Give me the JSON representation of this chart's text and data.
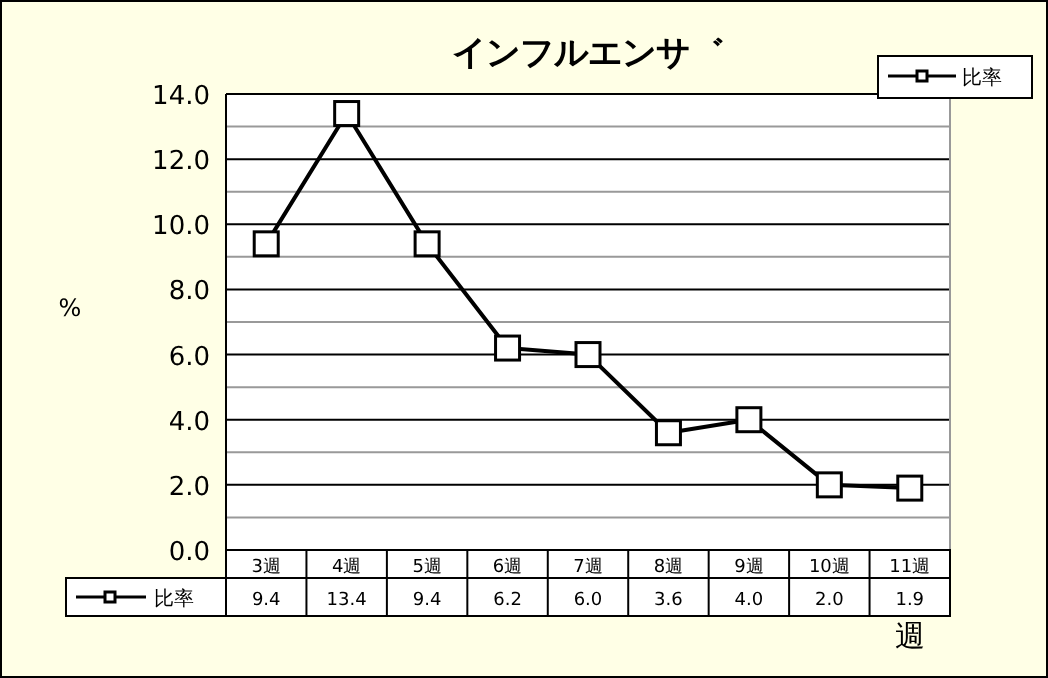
{
  "chart_data": {
    "type": "line",
    "title": "インフルエンサ゛",
    "xlabel": "週",
    "ylabel": "%",
    "categories": [
      "3週",
      "4週",
      "5週",
      "6週",
      "7週",
      "8週",
      "9週",
      "10週",
      "11週"
    ],
    "series": [
      {
        "name": "比率",
        "color": "#000000",
        "values": [
          9.4,
          13.4,
          9.4,
          6.2,
          6.0,
          3.6,
          4.0,
          2.0,
          1.9
        ],
        "value_labels": [
          "9.4",
          "13.4",
          "9.4",
          "6.2",
          "6.0",
          "3.6",
          "4.0",
          "2.0",
          "1.9"
        ]
      }
    ],
    "ylim": [
      0,
      14
    ],
    "yticks": [
      {
        "value": 0,
        "label": "0.0"
      },
      {
        "value": 1,
        "label": null
      },
      {
        "value": 2,
        "label": "2.0"
      },
      {
        "value": 3,
        "label": null
      },
      {
        "value": 4,
        "label": "4.0"
      },
      {
        "value": 5,
        "label": null
      },
      {
        "value": 6,
        "label": "6.0"
      },
      {
        "value": 7,
        "label": null
      },
      {
        "value": 8,
        "label": "8.0"
      },
      {
        "value": 9,
        "label": null
      },
      {
        "value": 10,
        "label": "10.0"
      },
      {
        "value": 11,
        "label": null
      },
      {
        "value": 12,
        "label": "12.0"
      },
      {
        "value": 13,
        "label": null
      },
      {
        "value": 14,
        "label": "14.0"
      }
    ],
    "grid": true,
    "legend": "top right",
    "marker": "square",
    "line_style": "solid"
  }
}
